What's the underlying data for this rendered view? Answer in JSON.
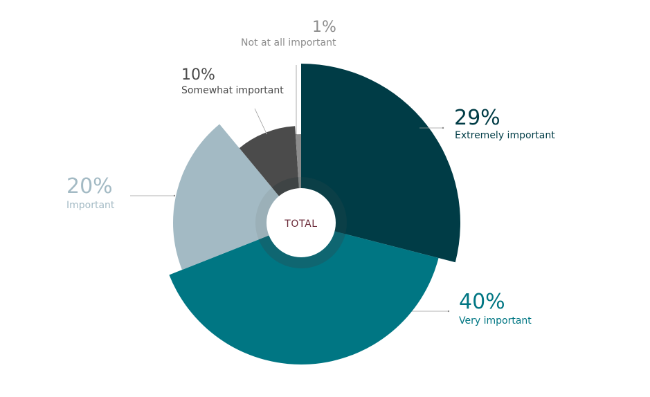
{
  "chart_data": {
    "type": "pie",
    "center_label": "TOTAL",
    "slices": [
      {
        "label": "Extremely important",
        "value": 29,
        "value_label": "29%",
        "color": "#003c46"
      },
      {
        "label": "Very important",
        "value": 40,
        "value_label": "40%",
        "color": "#007683"
      },
      {
        "label": "Important",
        "value": 20,
        "value_label": "20%",
        "color": "#a3bac4"
      },
      {
        "label": "Somewhat important",
        "value": 10,
        "value_label": "10%",
        "color": "#4b4b4b"
      },
      {
        "label": "Not at all important",
        "value": 1,
        "value_label": "1%",
        "color": "#8c8c8c"
      }
    ],
    "center_color": "#6b2a38",
    "inner_ring_colors": [
      "#0b3f47",
      "#0f6671",
      "#9bb0b8",
      "#3f4445",
      "#7f8484"
    ]
  }
}
